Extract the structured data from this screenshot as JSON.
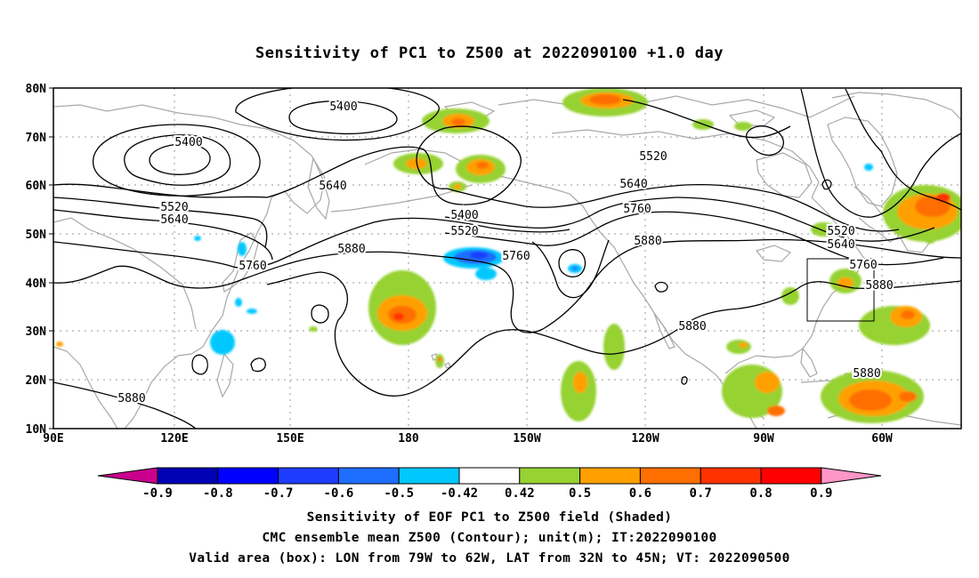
{
  "title": "Sensitivity of PC1 to Z500 at 2022090100 +1.0 day",
  "lat_labels": [
    "80N",
    "70N",
    "60N",
    "50N",
    "40N",
    "30N",
    "20N",
    "10N"
  ],
  "lon_labels": [
    "90E",
    "120E",
    "150E",
    "180",
    "150W",
    "120W",
    "90W",
    "60W"
  ],
  "contour_labels": [
    "5400",
    "5400",
    "5520",
    "5640",
    "5640",
    "5760",
    "5880",
    "5400",
    "5520",
    "5760",
    "5520",
    "5640",
    "5760",
    "5880",
    "5520",
    "5640",
    "5760",
    "5880",
    "5880",
    "5880",
    "5880"
  ],
  "colorbar": {
    "labels": [
      "-0.9",
      "-0.8",
      "-0.7",
      "-0.6",
      "-0.5",
      "-0.42",
      "0.42",
      "0.5",
      "0.6",
      "0.7",
      "0.8",
      "0.9"
    ],
    "colors": [
      "#0000b4",
      "#0000ff",
      "#1e3cff",
      "#1e6eff",
      "#00c8ff",
      "#ffffff",
      "#96d232",
      "#ffa000",
      "#ff6e00",
      "#ff3200",
      "#ff0000"
    ],
    "low_color": "#c8008c",
    "high_color": "#ff96c8"
  },
  "valid_box": {
    "lon": [
      -79,
      -62
    ],
    "lat": [
      32,
      45
    ]
  },
  "captions": [
    "Sensitivity of EOF PC1 to Z500 field (Shaded)",
    "CMC ensemble mean Z500 (Contour); unit(m); IT:2022090100",
    "Valid area (box): LON from 79W to 62W, LAT from 32N to 45N; VT: 2022090500"
  ]
}
